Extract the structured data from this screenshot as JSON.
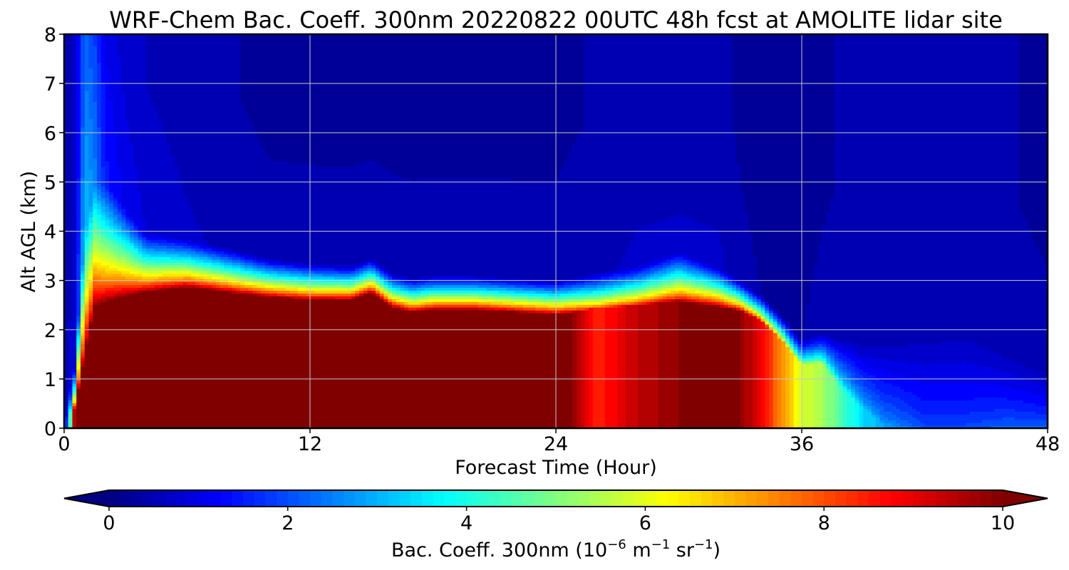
{
  "chart_data": {
    "type": "heatmap",
    "title": "WRF-Chem Bac. Coeff. 300nm  20220822 00UTC 48h fcst at AMOLITE lidar site",
    "xlabel": "Forecast Time (Hour)",
    "ylabel": "Alt AGL (km)",
    "xlim": [
      0,
      48
    ],
    "ylim": [
      0,
      8
    ],
    "xticks": [
      "0",
      "12",
      "24",
      "36",
      "48"
    ],
    "yticks": [
      "0",
      "1",
      "2",
      "3",
      "4",
      "5",
      "6",
      "7",
      "8"
    ],
    "grid": true,
    "colorbar": {
      "label_main": "Bac. Coeff. 300nm  (10",
      "label_exp1": "−6",
      "label_mid": " m",
      "label_exp2": "−1",
      "label_sr": " sr",
      "label_exp3": "−1",
      "label_close": ")",
      "range": [
        0,
        10
      ],
      "ticks": [
        "0",
        "2",
        "4",
        "6",
        "8",
        "10"
      ],
      "extend": "both",
      "colormap": "jet"
    },
    "x_hours": [
      0,
      0.25,
      0.5,
      1,
      1.5,
      2,
      3,
      4,
      6,
      8,
      10,
      12,
      14,
      15,
      16,
      17,
      18,
      20,
      22,
      24,
      26,
      28,
      30,
      32,
      33,
      34,
      35,
      36,
      37,
      38,
      39,
      40,
      42,
      44,
      46,
      48
    ],
    "surface_value": [
      0.9,
      3.5,
      9.5,
      11,
      11,
      11,
      11,
      11,
      11,
      11,
      11,
      11,
      11,
      11,
      11,
      11,
      11,
      11,
      11,
      11,
      8.5,
      9.5,
      10,
      11,
      10,
      9,
      7.5,
      6,
      5.5,
      4.5,
      3.5,
      3,
      2.2,
      2.2,
      2.5,
      2.5
    ],
    "top_value": [
      0.6,
      0.8,
      1.0,
      3.4,
      2.6,
      1.6,
      1.2,
      1.0,
      0.8,
      0.7,
      0.6,
      0.6,
      0.6,
      0.6,
      0.6,
      0.6,
      0.6,
      0.6,
      0.6,
      0.6,
      0.7,
      0.8,
      0.8,
      0.8,
      0.6,
      0.5,
      0.5,
      0.5,
      0.6,
      0.7,
      0.7,
      0.7,
      0.7,
      0.7,
      0.7,
      0.6
    ],
    "layer_top_km": [
      0,
      0.3,
      0.4,
      1.4,
      2.4,
      2.5,
      2.65,
      2.75,
      2.85,
      2.75,
      2.65,
      2.6,
      2.6,
      2.75,
      2.45,
      2.35,
      2.4,
      2.4,
      2.35,
      2.3,
      2.45,
      2.5,
      2.6,
      2.45,
      2.4,
      2.2,
      1.8,
      1.3,
      1.35,
      0.8,
      0.4,
      0.1,
      0,
      0,
      0,
      0
    ],
    "gradient_depth_km": [
      0.4,
      0.5,
      0.8,
      2.5,
      2.6,
      2.5,
      1.8,
      1.2,
      1.0,
      0.9,
      0.8,
      0.75,
      0.7,
      0.7,
      0.7,
      0.7,
      0.7,
      0.7,
      0.7,
      0.7,
      0.7,
      0.8,
      1.0,
      0.8,
      0.6,
      0.5,
      0.5,
      0.5,
      0.6,
      1.0,
      1.3,
      1.6,
      1.8,
      1.9,
      1.5,
      1.2
    ]
  }
}
